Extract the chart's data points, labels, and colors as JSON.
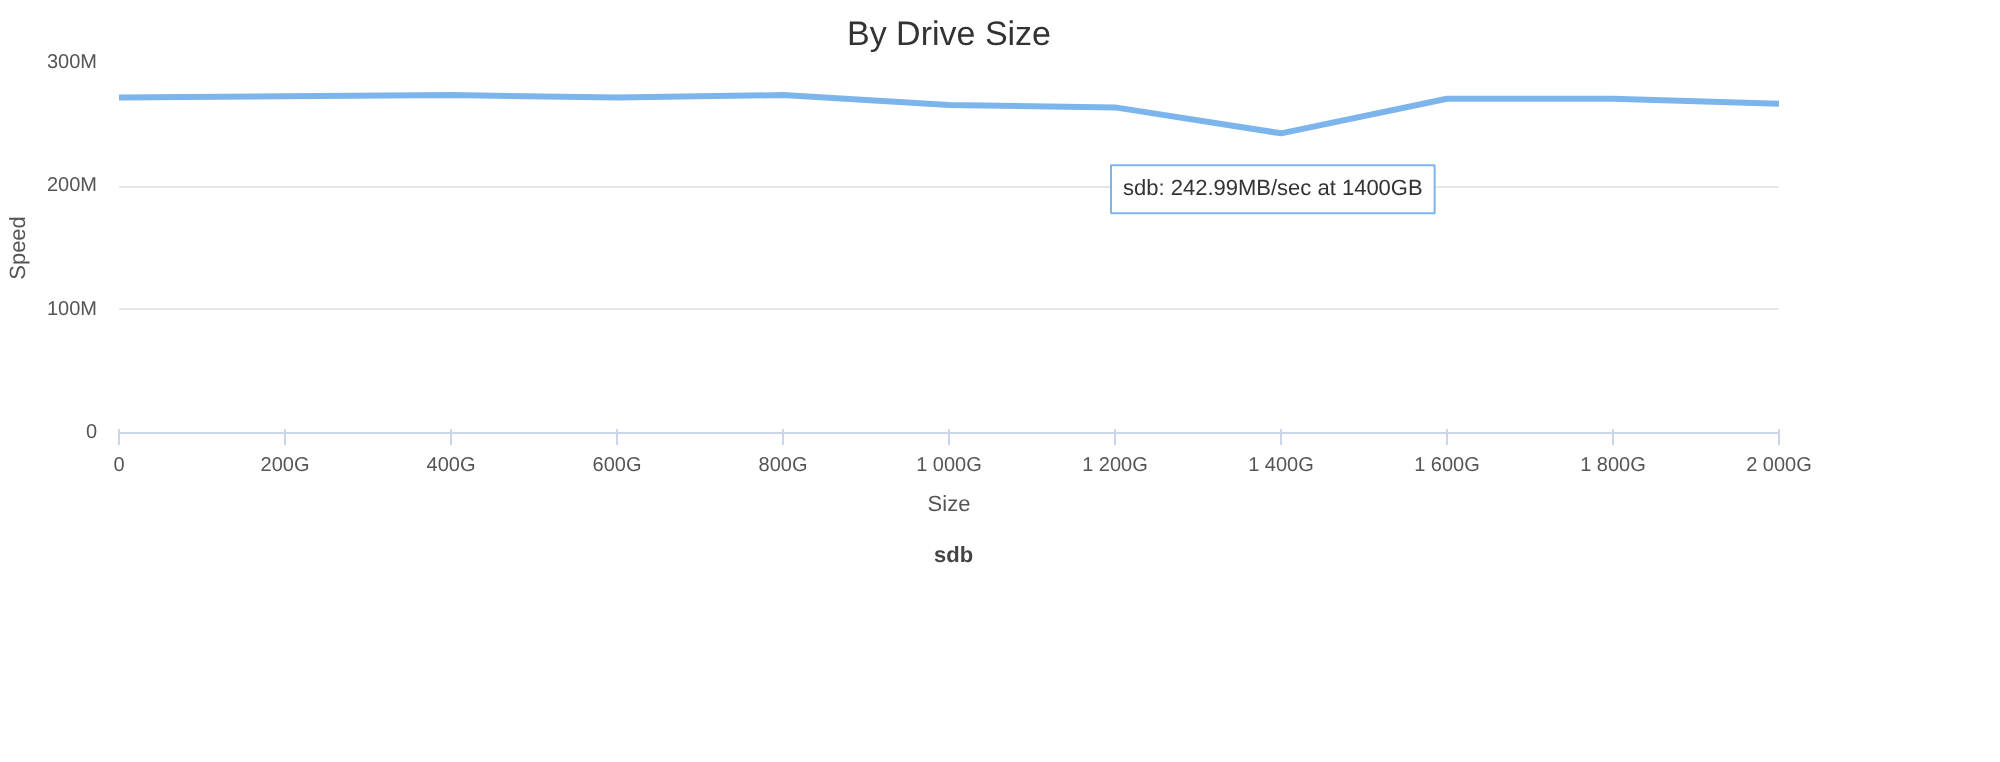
{
  "chart_data": {
    "type": "line",
    "title": "By Drive Size",
    "xlabel": "Size",
    "ylabel": "Speed",
    "x": [
      0,
      200,
      400,
      600,
      800,
      1000,
      1200,
      1400,
      1600,
      1800,
      2000
    ],
    "series": [
      {
        "name": "sdb",
        "color": "#7cb5ec",
        "values": [
          272,
          273,
          274,
          272,
          274,
          266,
          264,
          242.99,
          271,
          271,
          267
        ]
      }
    ],
    "xlim": [
      0,
      2000
    ],
    "xticks": [
      0,
      {
        "value": 200,
        "label": "200G"
      },
      {
        "value": 400,
        "label": "400G"
      },
      {
        "value": 600,
        "label": "600G"
      },
      {
        "value": 800,
        "label": "800G"
      },
      {
        "value": 1000,
        "label": "1 000G"
      },
      {
        "value": 1200,
        "label": "1 200G"
      },
      {
        "value": 1400,
        "label": "1 400G"
      },
      {
        "value": 1600,
        "label": "1 600G"
      },
      {
        "value": 1800,
        "label": "1 800G"
      },
      {
        "value": 2000,
        "label": "2 000G"
      }
    ],
    "ylim": [
      0,
      300
    ],
    "yticks": [
      0,
      {
        "value": 100,
        "label": "100M"
      },
      {
        "value": 200,
        "label": "200M"
      },
      {
        "value": 300,
        "label": "300M"
      }
    ],
    "annotations": [
      {
        "text": "sdb: 242.99MB/sec at 1400GB",
        "x": 1400,
        "y": 242.99
      }
    ],
    "grid": "y",
    "legend": "bottom",
    "marker": "none",
    "line_style": "solid"
  }
}
